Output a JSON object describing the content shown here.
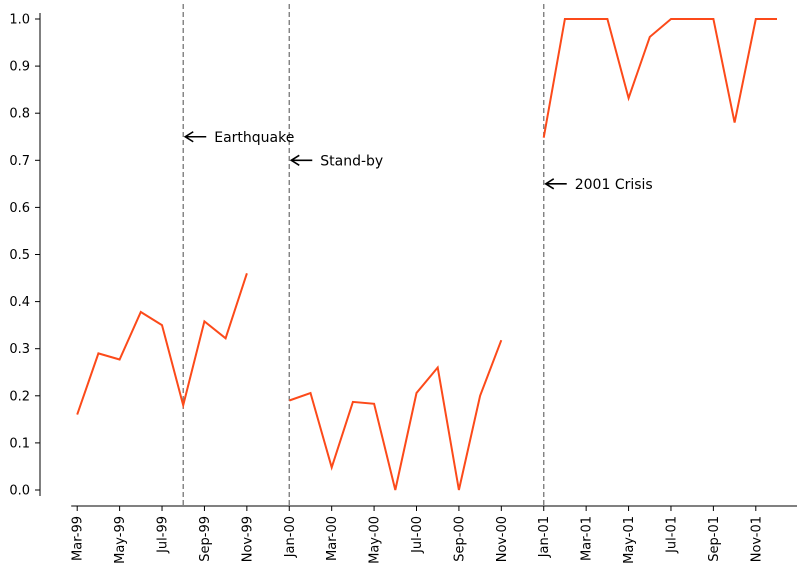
{
  "chart_data": {
    "type": "line",
    "title": "",
    "xlabel": "",
    "ylabel": "",
    "ylim": [
      0.0,
      1.0
    ],
    "y_ticks": [
      "0.0",
      "0.1",
      "0.2",
      "0.3",
      "0.4",
      "0.5",
      "0.6",
      "0.7",
      "0.8",
      "0.9",
      "1.0"
    ],
    "x_ticks": [
      "Mar-99",
      "May-99",
      "Jul-99",
      "Sep-99",
      "Nov-99",
      "Jan-00",
      "Mar-00",
      "May-00",
      "Jul-00",
      "Sep-00",
      "Nov-00",
      "Jan-01",
      "Mar-01",
      "May-01",
      "Jul-01",
      "Sep-01",
      "Nov-01"
    ],
    "x_range": [
      "Feb-99",
      "Dec-01"
    ],
    "grid": false,
    "colors": {
      "line": "#fc4a1a",
      "event_line": "#7f7f7f",
      "axis": "#000000"
    },
    "series": [
      {
        "segments": [
          [
            [
              "Mar-99",
              0.16
            ],
            [
              "Apr-99",
              0.29
            ],
            [
              "May-99",
              0.277
            ],
            [
              "Jun-99",
              0.378
            ],
            [
              "Jul-99",
              0.35
            ],
            [
              "Aug-99",
              0.18
            ],
            [
              "Sep-99",
              0.358
            ],
            [
              "Oct-99",
              0.322
            ],
            [
              "Nov-99",
              0.46
            ]
          ],
          [
            [
              "Jan-00",
              0.19
            ],
            [
              "Feb-00",
              0.206
            ],
            [
              "Mar-00",
              0.048
            ],
            [
              "Apr-00",
              0.187
            ],
            [
              "May-00",
              0.183
            ],
            [
              "Jun-00",
              0.0
            ],
            [
              "Jul-00",
              0.206
            ],
            [
              "Aug-00",
              0.26
            ],
            [
              "Sep-00",
              0.0
            ],
            [
              "Oct-00",
              0.2
            ],
            [
              "Nov-00",
              0.318
            ]
          ],
          [
            [
              "Jan-01",
              0.748
            ],
            [
              "Feb-01",
              1.0
            ],
            [
              "Mar-01",
              1.0
            ],
            [
              "Apr-01",
              1.0
            ],
            [
              "May-01",
              0.832
            ],
            [
              "Jun-01",
              0.962
            ],
            [
              "Jul-01",
              1.0
            ],
            [
              "Aug-01",
              1.0
            ],
            [
              "Sep-01",
              1.0
            ],
            [
              "Oct-01",
              0.78
            ],
            [
              "Nov-01",
              1.0
            ],
            [
              "Dec-01",
              1.0
            ]
          ]
        ]
      }
    ],
    "events": [
      {
        "x": "Aug-99",
        "label": "Earthquake",
        "y": 0.75
      },
      {
        "x": "Jan-00",
        "label": "Stand-by",
        "y": 0.7
      },
      {
        "x": "Jan-01",
        "label": "2001 Crisis",
        "y": 0.65
      }
    ]
  }
}
